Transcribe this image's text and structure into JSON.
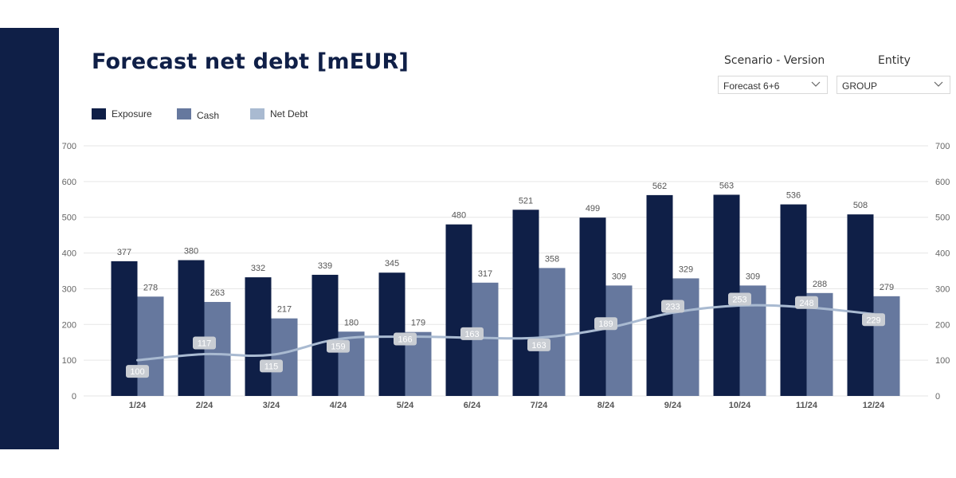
{
  "title": "Forecast net debt [mEUR]",
  "filters": [
    {
      "label": "Scenario - Version",
      "value": "Forecast 6+6"
    },
    {
      "label": "Entity",
      "value": "GROUP"
    }
  ],
  "colors": {
    "sidebar": "#0f1f47",
    "exposure": "#0f1f47",
    "cash": "#66789e",
    "net_debt": "#a9bad1",
    "grid": "#e6e6e6",
    "axis_text": "#666666",
    "label_box": "#c9cdd3"
  },
  "chart_data": {
    "type": "bar",
    "categories": [
      "1/24",
      "2/24",
      "3/24",
      "4/24",
      "5/24",
      "6/24",
      "7/24",
      "8/24",
      "9/24",
      "10/24",
      "11/24",
      "12/24"
    ],
    "series": [
      {
        "name": "Exposure",
        "kind": "bar",
        "values": [
          377,
          380,
          332,
          339,
          345,
          480,
          521,
          499,
          562,
          563,
          536,
          508
        ]
      },
      {
        "name": "Cash",
        "kind": "bar",
        "values": [
          278,
          263,
          217,
          180,
          179,
          317,
          358,
          309,
          329,
          309,
          288,
          279
        ]
      },
      {
        "name": "Net Debt",
        "kind": "line",
        "values": [
          100,
          117,
          115,
          159,
          166,
          163,
          163,
          189,
          233,
          253,
          248,
          229
        ]
      }
    ],
    "ylim": [
      0,
      700
    ],
    "yticks": [
      0,
      100,
      200,
      300,
      400,
      500,
      600,
      700
    ],
    "secondary_ylim": [
      0,
      700
    ],
    "grid": true,
    "legend": "top-left",
    "data_labels": true
  }
}
